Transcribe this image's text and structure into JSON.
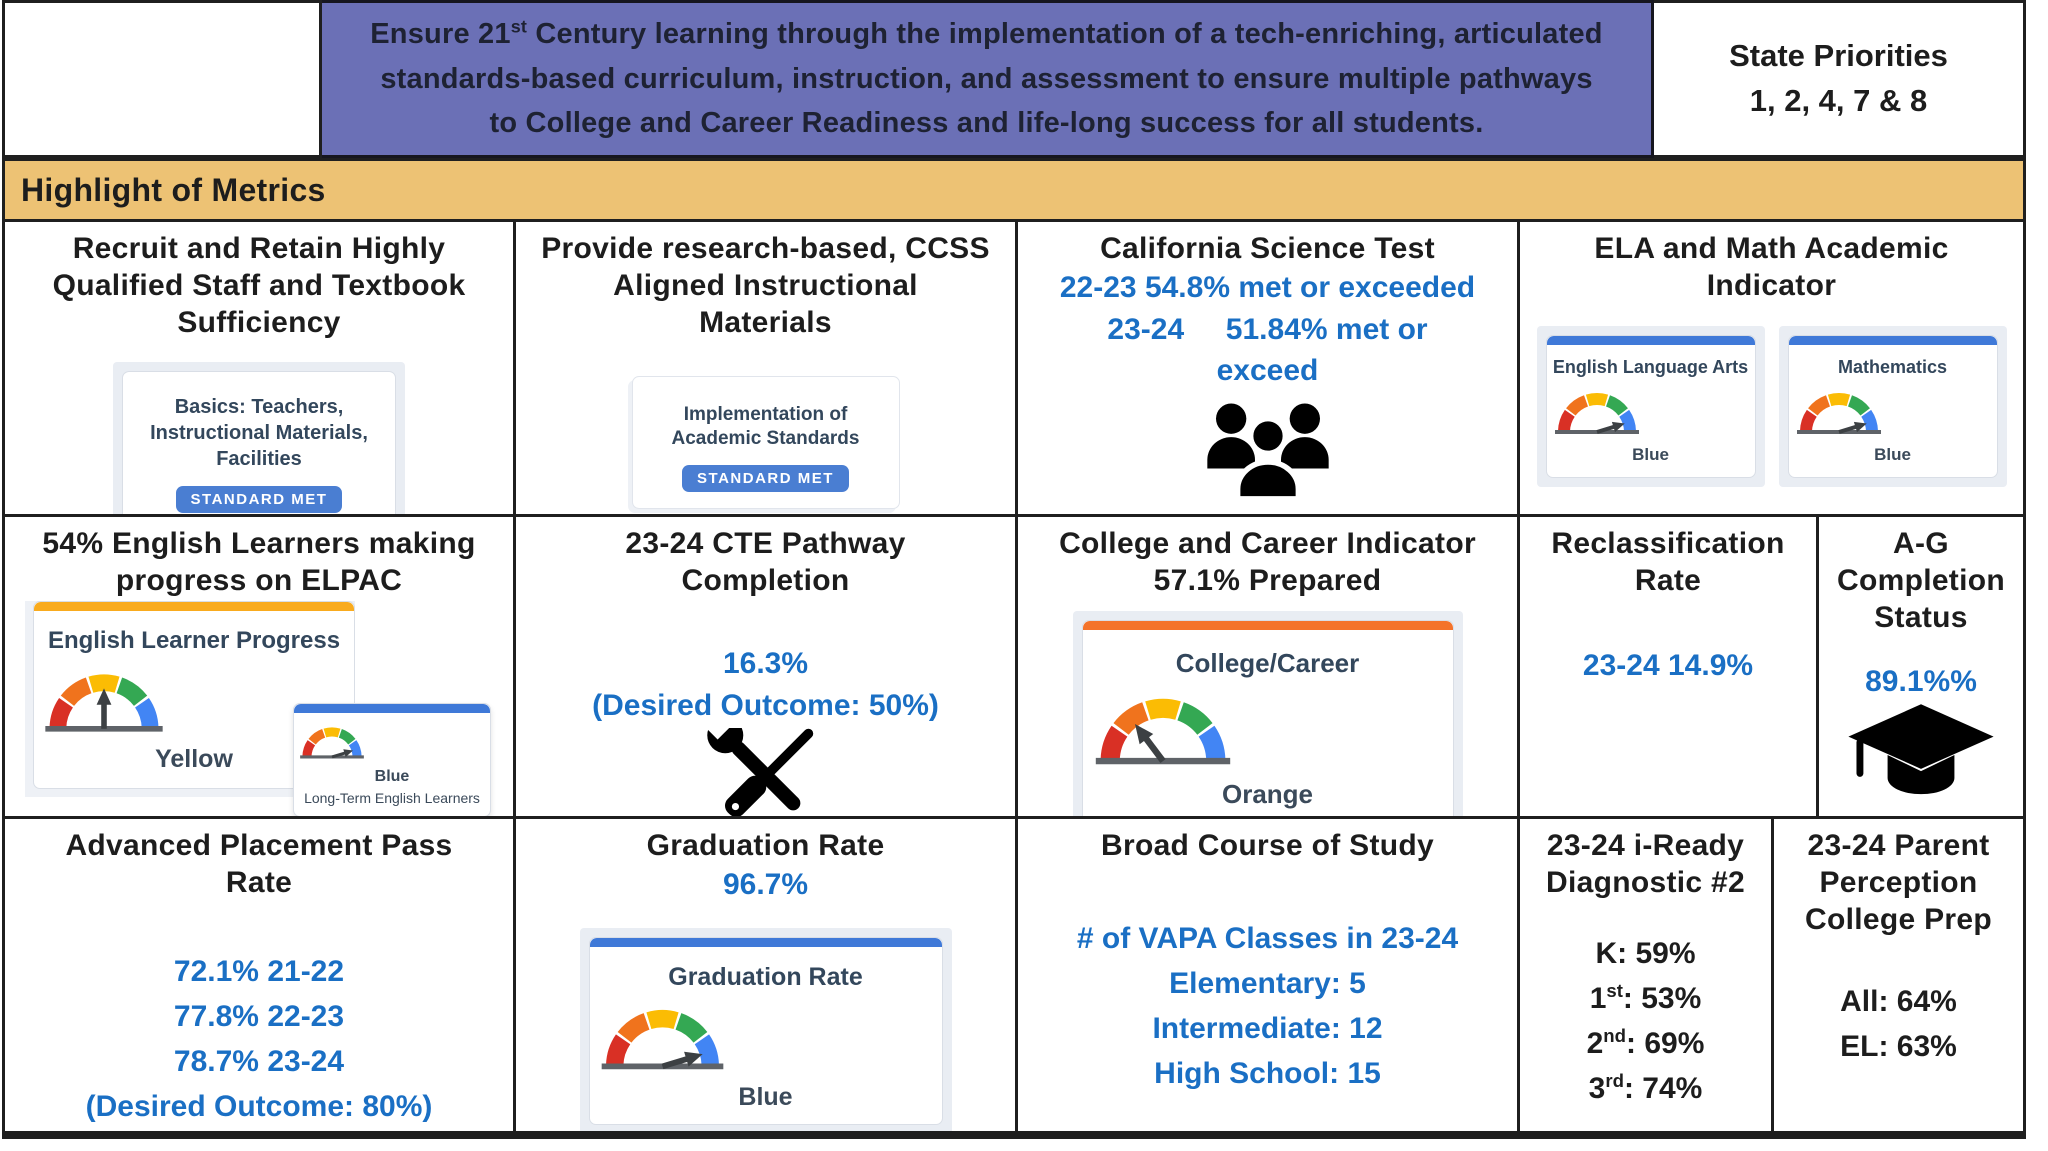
{
  "theme": {
    "banner_bg": "#6b70b6",
    "band_bg": "#edc274",
    "blue_text": "#1a6fc4",
    "badge_bg": "#4a7ed2",
    "gauge_segments": [
      "#d93025",
      "#f0731d",
      "#fbbc04",
      "#34a853",
      "#4285f4"
    ]
  },
  "header": {
    "mission_pre": "Ensure 21",
    "mission_sup": "st",
    "mission_post": " Century learning through the implementation of a tech-enriching, articulated standards-based curriculum, instruction, and assessment to ensure multiple pathways to College and Career Readiness and life-long success for all students.",
    "priorities_line1": "State Priorities",
    "priorities_line2": "1, 2, 4, 7 & 8"
  },
  "section_header": "Highlight of Metrics",
  "icons": {
    "science": "people-group-icon",
    "cte": "crossed-tools-icon",
    "ag": "graduation-cap-icon"
  },
  "cells": {
    "staff": {
      "title_lines": [
        "Recruit and Retain Highly",
        "Qualified Staff and Textbook",
        "Sufficiency"
      ],
      "card_title": "Basics: Teachers, Instructional Materials, Facilities",
      "badge": "STANDARD MET"
    },
    "materials": {
      "title_lines": [
        "Provide research-based, CCSS",
        "Aligned Instructional",
        "Materials"
      ],
      "card_title": "Implementation of Academic Standards",
      "badge": "STANDARD MET"
    },
    "science": {
      "title": "California Science Test",
      "lines": [
        "22-23 54.8% met or exceeded",
        "23-24     51.84% met or",
        "exceed"
      ]
    },
    "ela_math": {
      "title_lines": [
        "ELA and Math Academic",
        "Indicator"
      ],
      "gauges": [
        {
          "title": "English Language Arts",
          "label": "Blue"
        },
        {
          "title": "Mathematics",
          "label": "Blue"
        }
      ]
    },
    "elpac": {
      "title_lines": [
        "54% English Learners making",
        "progress on ELPAC"
      ],
      "main_gauge": {
        "title": "English Learner Progress",
        "label": "Yellow"
      },
      "small_gauge": {
        "label": "Blue",
        "subtitle": "Long-Term English Learners"
      }
    },
    "cte": {
      "title_lines": [
        "23-24 CTE Pathway",
        "Completion"
      ],
      "value": "16.3%",
      "note": "(Desired Outcome: 50%)"
    },
    "cci": {
      "title_lines": [
        "College and Career Indicator",
        "57.1% Prepared"
      ],
      "gauge": {
        "title": "College/Career",
        "label": "Orange"
      }
    },
    "reclassification": {
      "title_lines": [
        "Reclassification",
        "Rate"
      ],
      "value": "23-24 14.9%"
    },
    "ag": {
      "title_lines": [
        "A-G",
        "Completion",
        "Status"
      ],
      "value": "89.1%%"
    },
    "ap": {
      "title_lines": [
        "Advanced Placement Pass",
        "Rate"
      ],
      "lines": [
        "72.1% 21-22",
        "77.8% 22-23",
        "78.7% 23-24",
        "(Desired Outcome: 80%)"
      ]
    },
    "graduation": {
      "title": "Graduation Rate",
      "value": "96.7%",
      "gauge": {
        "title": "Graduation Rate",
        "label": "Blue"
      }
    },
    "vapa": {
      "title": "Broad Course of Study",
      "lines": [
        "# of VAPA Classes in 23-24",
        "Elementary: 5",
        "Intermediate: 12",
        "High School: 15"
      ]
    },
    "iready": {
      "title_lines": [
        "23-24 i-Ready",
        "Diagnostic #2"
      ],
      "rows": [
        {
          "num": "K",
          "ord": "",
          "rest": ": 59%"
        },
        {
          "num": "1",
          "ord": "st",
          "rest": ": 53%"
        },
        {
          "num": "2",
          "ord": "nd",
          "rest": ": 69%"
        },
        {
          "num": "3",
          "ord": "rd",
          "rest": ": 74%"
        }
      ]
    },
    "parent": {
      "title_lines": [
        "23-24 Parent",
        "Perception",
        "College Prep"
      ],
      "lines": [
        "All: 64%",
        "EL: 63%"
      ]
    }
  }
}
